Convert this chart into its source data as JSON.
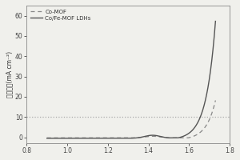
{
  "xlim": [
    0.8,
    1.8
  ],
  "ylim": [
    -3,
    65
  ],
  "yticks": [
    0,
    10,
    20,
    30,
    40,
    50,
    60
  ],
  "xticks": [
    0.8,
    1.0,
    1.2,
    1.4,
    1.6,
    1.8
  ],
  "hline_y": 10,
  "legend": [
    "Co-MOF",
    "Co/Fe-MOF LDHs"
  ],
  "line_color_comof": "#888888",
  "line_color_ldhs": "#555555",
  "background": "#f0f0ec",
  "ylabel": "电流密度(mA cm⁻²)"
}
